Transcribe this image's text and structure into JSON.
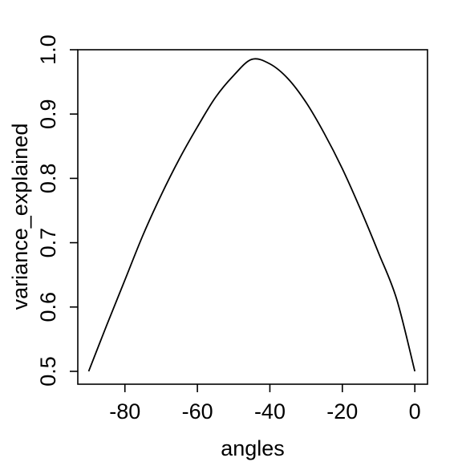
{
  "chart_data": {
    "type": "line",
    "title": "",
    "xlabel": "angles",
    "ylabel": "variance_explained",
    "xlim": [
      -93,
      3.5
    ],
    "ylim": [
      0.48,
      1.0
    ],
    "xticks": [
      -80,
      -60,
      -40,
      -20,
      0
    ],
    "xtick_labels": [
      "-80",
      "-60",
      "-40",
      "-20",
      "0"
    ],
    "yticks": [
      0.5,
      0.6,
      0.7,
      0.8,
      0.9,
      1.0
    ],
    "ytick_labels": [
      "0.5",
      "0.6",
      "0.7",
      "0.8",
      "0.9",
      "1.0"
    ],
    "grid": false,
    "legend": "none",
    "line_color": "#000000",
    "series": [
      {
        "x": [
          -90,
          -85,
          -80,
          -75,
          -70,
          -65,
          -60,
          -55,
          -50,
          -45,
          -40,
          -35,
          -30,
          -25,
          -20,
          -15,
          -10,
          -5,
          0
        ],
        "y": [
          0.5,
          0.572,
          0.642,
          0.712,
          0.774,
          0.83,
          0.88,
          0.926,
          0.96,
          0.985,
          0.978,
          0.955,
          0.918,
          0.87,
          0.815,
          0.752,
          0.684,
          0.612,
          0.5
        ]
      }
    ]
  }
}
